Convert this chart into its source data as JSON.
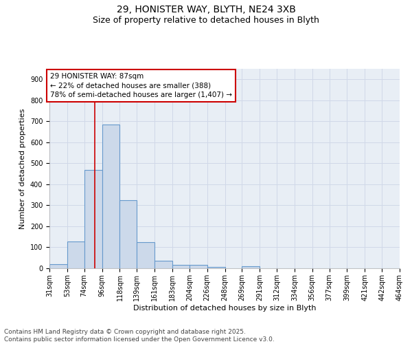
{
  "title_line1": "29, HONISTER WAY, BLYTH, NE24 3XB",
  "title_line2": "Size of property relative to detached houses in Blyth",
  "xlabel": "Distribution of detached houses by size in Blyth",
  "ylabel": "Number of detached properties",
  "bar_edges": [
    31,
    53,
    74,
    96,
    118,
    139,
    161,
    183,
    204,
    226,
    248,
    269,
    291,
    312,
    334,
    356,
    377,
    399,
    421,
    442,
    464
  ],
  "bar_heights": [
    20,
    128,
    470,
    685,
    323,
    125,
    35,
    18,
    15,
    8,
    0,
    10,
    0,
    0,
    0,
    0,
    0,
    0,
    0,
    0
  ],
  "bar_face_color": "#ccd9ea",
  "bar_edge_color": "#6699cc",
  "grid_color": "#d0d8e8",
  "bg_color": "#e8eef5",
  "annotation_text": "29 HONISTER WAY: 87sqm\n← 22% of detached houses are smaller (388)\n78% of semi-detached houses are larger (1,407) →",
  "annotation_box_color": "#ffffff",
  "annotation_box_edge": "#cc0000",
  "vline_x": 87,
  "vline_color": "#cc0000",
  "ylim": [
    0,
    950
  ],
  "yticks": [
    0,
    100,
    200,
    300,
    400,
    500,
    600,
    700,
    800,
    900
  ],
  "tick_labels": [
    "31sqm",
    "53sqm",
    "74sqm",
    "96sqm",
    "118sqm",
    "139sqm",
    "161sqm",
    "183sqm",
    "204sqm",
    "226sqm",
    "248sqm",
    "269sqm",
    "291sqm",
    "312sqm",
    "334sqm",
    "356sqm",
    "377sqm",
    "399sqm",
    "421sqm",
    "442sqm",
    "464sqm"
  ],
  "footer_text": "Contains HM Land Registry data © Crown copyright and database right 2025.\nContains public sector information licensed under the Open Government Licence v3.0.",
  "title_fontsize": 10,
  "subtitle_fontsize": 9,
  "axis_label_fontsize": 8,
  "tick_fontsize": 7,
  "annotation_fontsize": 7.5,
  "footer_fontsize": 6.5
}
